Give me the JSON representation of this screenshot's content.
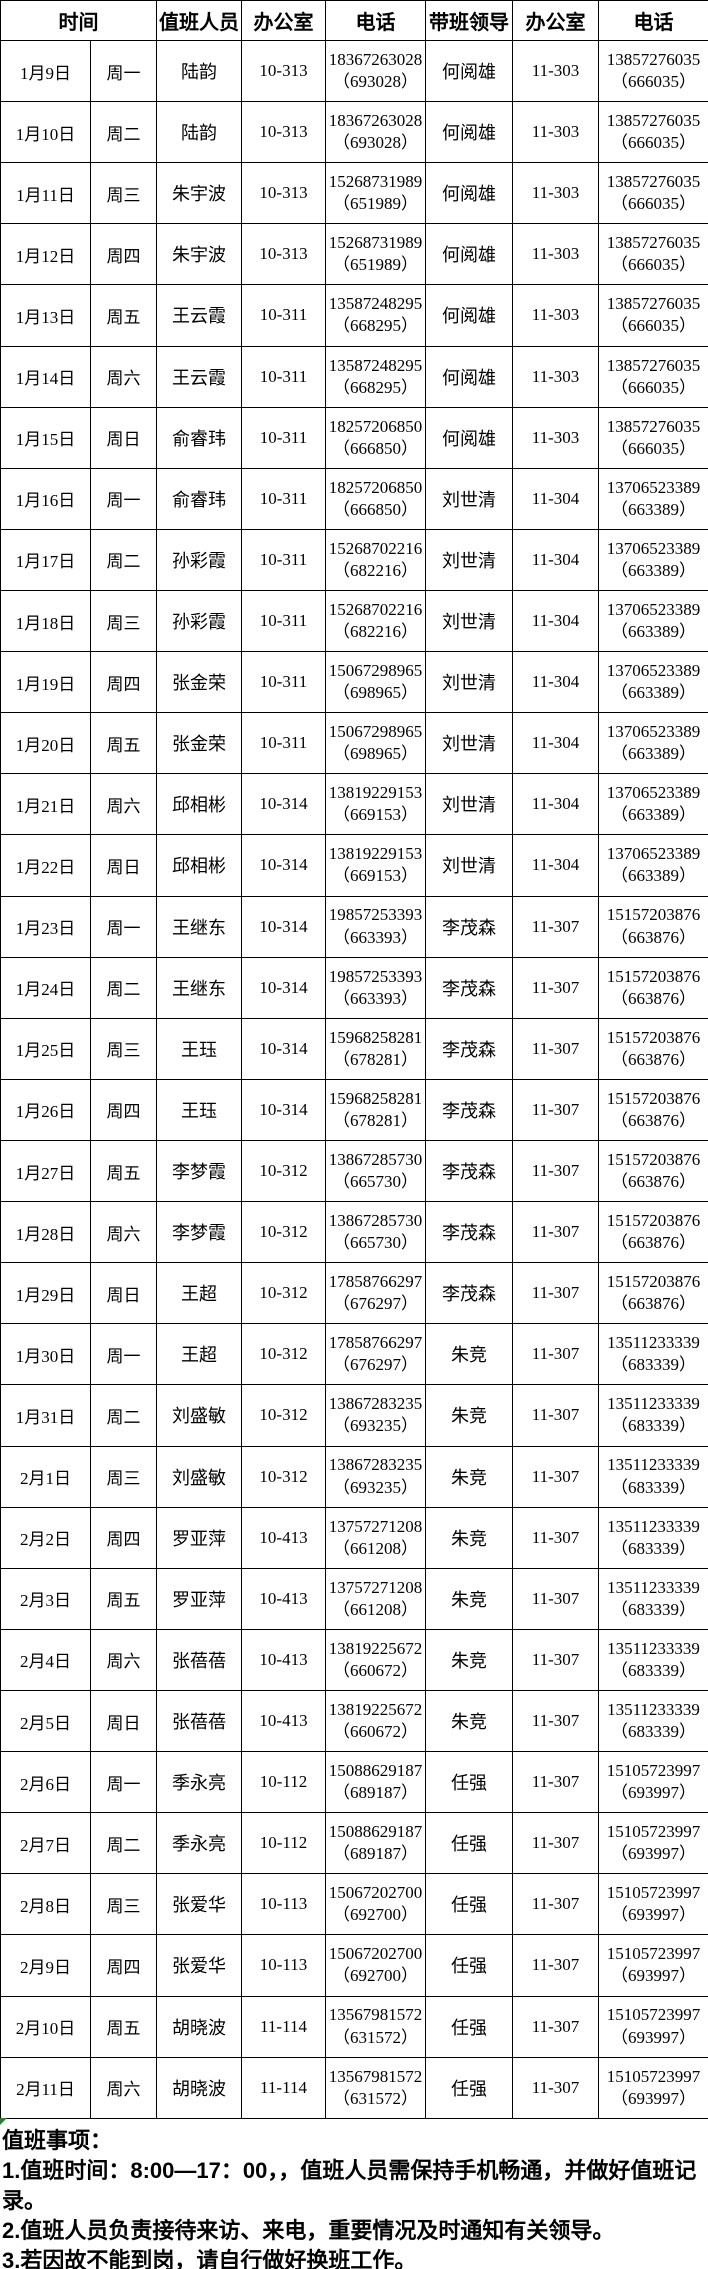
{
  "table": {
    "headers": {
      "time": "时间",
      "person": "值班人员",
      "office": "办公室",
      "phone": "电话",
      "leader": "带班领导",
      "leader_office": "办公室",
      "leader_phone": "电话"
    },
    "rows": [
      {
        "date": "1月9日",
        "weekday": "周一",
        "person": "陆韵",
        "office": "10-313",
        "phone": "18367263028",
        "ext": "（693028）",
        "leader": "何阅雄",
        "leader_office": "11-303",
        "leader_phone": "13857276035",
        "leader_ext": "（666035）"
      },
      {
        "date": "1月10日",
        "weekday": "周二",
        "person": "陆韵",
        "office": "10-313",
        "phone": "18367263028",
        "ext": "（693028）",
        "leader": "何阅雄",
        "leader_office": "11-303",
        "leader_phone": "13857276035",
        "leader_ext": "（666035）"
      },
      {
        "date": "1月11日",
        "weekday": "周三",
        "person": "朱宇波",
        "office": "10-313",
        "phone": "15268731989",
        "ext": "（651989）",
        "leader": "何阅雄",
        "leader_office": "11-303",
        "leader_phone": "13857276035",
        "leader_ext": "（666035）"
      },
      {
        "date": "1月12日",
        "weekday": "周四",
        "person": "朱宇波",
        "office": "10-313",
        "phone": "15268731989",
        "ext": "（651989）",
        "leader": "何阅雄",
        "leader_office": "11-303",
        "leader_phone": "13857276035",
        "leader_ext": "（666035）"
      },
      {
        "date": "1月13日",
        "weekday": "周五",
        "person": "王云霞",
        "office": "10-311",
        "phone": "13587248295",
        "ext": "（668295）",
        "leader": "何阅雄",
        "leader_office": "11-303",
        "leader_phone": "13857276035",
        "leader_ext": "（666035）"
      },
      {
        "date": "1月14日",
        "weekday": "周六",
        "person": "王云霞",
        "office": "10-311",
        "phone": "13587248295",
        "ext": "（668295）",
        "leader": "何阅雄",
        "leader_office": "11-303",
        "leader_phone": "13857276035",
        "leader_ext": "（666035）"
      },
      {
        "date": "1月15日",
        "weekday": "周日",
        "person": "俞睿玮",
        "office": "10-311",
        "phone": "18257206850",
        "ext": "（666850）",
        "leader": "何阅雄",
        "leader_office": "11-303",
        "leader_phone": "13857276035",
        "leader_ext": "（666035）"
      },
      {
        "date": "1月16日",
        "weekday": "周一",
        "person": "俞睿玮",
        "office": "10-311",
        "phone": "18257206850",
        "ext": "（666850）",
        "leader": "刘世清",
        "leader_office": "11-304",
        "leader_phone": "13706523389",
        "leader_ext": "（663389）"
      },
      {
        "date": "1月17日",
        "weekday": "周二",
        "person": "孙彩霞",
        "office": "10-311",
        "phone": "15268702216",
        "ext": "（682216）",
        "leader": "刘世清",
        "leader_office": "11-304",
        "leader_phone": "13706523389",
        "leader_ext": "（663389）"
      },
      {
        "date": "1月18日",
        "weekday": "周三",
        "person": "孙彩霞",
        "office": "10-311",
        "phone": "15268702216",
        "ext": "（682216）",
        "leader": "刘世清",
        "leader_office": "11-304",
        "leader_phone": "13706523389",
        "leader_ext": "（663389）"
      },
      {
        "date": "1月19日",
        "weekday": "周四",
        "person": "张金荣",
        "office": "10-311",
        "phone": "15067298965",
        "ext": "（698965）",
        "leader": "刘世清",
        "leader_office": "11-304",
        "leader_phone": "13706523389",
        "leader_ext": "（663389）"
      },
      {
        "date": "1月20日",
        "weekday": "周五",
        "person": "张金荣",
        "office": "10-311",
        "phone": "15067298965",
        "ext": "（698965）",
        "leader": "刘世清",
        "leader_office": "11-304",
        "leader_phone": "13706523389",
        "leader_ext": "（663389）"
      },
      {
        "date": "1月21日",
        "weekday": "周六",
        "person": "邱相彬",
        "office": "10-314",
        "phone": "13819229153",
        "ext": "（669153）",
        "leader": "刘世清",
        "leader_office": "11-304",
        "leader_phone": "13706523389",
        "leader_ext": "（663389）"
      },
      {
        "date": "1月22日",
        "weekday": "周日",
        "person": "邱相彬",
        "office": "10-314",
        "phone": "13819229153",
        "ext": "（669153）",
        "leader": "刘世清",
        "leader_office": "11-304",
        "leader_phone": "13706523389",
        "leader_ext": "（663389）"
      },
      {
        "date": "1月23日",
        "weekday": "周一",
        "person": "王继东",
        "office": "10-314",
        "phone": "19857253393",
        "ext": "（663393）",
        "leader": "李茂森",
        "leader_office": "11-307",
        "leader_phone": "15157203876",
        "leader_ext": "（663876）"
      },
      {
        "date": "1月24日",
        "weekday": "周二",
        "person": "王继东",
        "office": "10-314",
        "phone": "19857253393",
        "ext": "（663393）",
        "leader": "李茂森",
        "leader_office": "11-307",
        "leader_phone": "15157203876",
        "leader_ext": "（663876）"
      },
      {
        "date": "1月25日",
        "weekday": "周三",
        "person": "王珏",
        "office": "10-314",
        "phone": "15968258281",
        "ext": "（678281）",
        "leader": "李茂森",
        "leader_office": "11-307",
        "leader_phone": "15157203876",
        "leader_ext": "（663876）"
      },
      {
        "date": "1月26日",
        "weekday": "周四",
        "person": "王珏",
        "office": "10-314",
        "phone": "15968258281",
        "ext": "（678281）",
        "leader": "李茂森",
        "leader_office": "11-307",
        "leader_phone": "15157203876",
        "leader_ext": "（663876）"
      },
      {
        "date": "1月27日",
        "weekday": "周五",
        "person": "李梦霞",
        "office": "10-312",
        "phone": "13867285730",
        "ext": "（665730）",
        "leader": "李茂森",
        "leader_office": "11-307",
        "leader_phone": "15157203876",
        "leader_ext": "（663876）"
      },
      {
        "date": "1月28日",
        "weekday": "周六",
        "person": "李梦霞",
        "office": "10-312",
        "phone": "13867285730",
        "ext": "（665730）",
        "leader": "李茂森",
        "leader_office": "11-307",
        "leader_phone": "15157203876",
        "leader_ext": "（663876）"
      },
      {
        "date": "1月29日",
        "weekday": "周日",
        "person": "王超",
        "office": "10-312",
        "phone": "17858766297",
        "ext": "（676297）",
        "leader": "李茂森",
        "leader_office": "11-307",
        "leader_phone": "15157203876",
        "leader_ext": "（663876）"
      },
      {
        "date": "1月30日",
        "weekday": "周一",
        "person": "王超",
        "office": "10-312",
        "phone": "17858766297",
        "ext": "（676297）",
        "leader": "朱竞",
        "leader_office": "11-307",
        "leader_phone": "13511233339",
        "leader_ext": "（683339）"
      },
      {
        "date": "1月31日",
        "weekday": "周二",
        "person": "刘盛敏",
        "office": "10-312",
        "phone": "13867283235",
        "ext": "（693235）",
        "leader": "朱竞",
        "leader_office": "11-307",
        "leader_phone": "13511233339",
        "leader_ext": "（683339）"
      },
      {
        "date": "2月1日",
        "weekday": "周三",
        "person": "刘盛敏",
        "office": "10-312",
        "phone": "13867283235",
        "ext": "（693235）",
        "leader": "朱竞",
        "leader_office": "11-307",
        "leader_phone": "13511233339",
        "leader_ext": "（683339）"
      },
      {
        "date": "2月2日",
        "weekday": "周四",
        "person": "罗亚萍",
        "office": "10-413",
        "phone": "13757271208",
        "ext": "（661208）",
        "leader": "朱竞",
        "leader_office": "11-307",
        "leader_phone": "13511233339",
        "leader_ext": "（683339）"
      },
      {
        "date": "2月3日",
        "weekday": "周五",
        "person": "罗亚萍",
        "office": "10-413",
        "phone": "13757271208",
        "ext": "（661208）",
        "leader": "朱竞",
        "leader_office": "11-307",
        "leader_phone": "13511233339",
        "leader_ext": "（683339）"
      },
      {
        "date": "2月4日",
        "weekday": "周六",
        "person": "张蓓蓓",
        "office": "10-413",
        "phone": "13819225672",
        "ext": "（660672）",
        "leader": "朱竞",
        "leader_office": "11-307",
        "leader_phone": "13511233339",
        "leader_ext": "（683339）"
      },
      {
        "date": "2月5日",
        "weekday": "周日",
        "person": "张蓓蓓",
        "office": "10-413",
        "phone": "13819225672",
        "ext": "（660672）",
        "leader": "朱竞",
        "leader_office": "11-307",
        "leader_phone": "13511233339",
        "leader_ext": "（683339）"
      },
      {
        "date": "2月6日",
        "weekday": "周一",
        "person": "季永亮",
        "office": "10-112",
        "phone": "15088629187",
        "ext": "（689187）",
        "leader": "任强",
        "leader_office": "11-307",
        "leader_phone": "15105723997",
        "leader_ext": "（693997）"
      },
      {
        "date": "2月7日",
        "weekday": "周二",
        "person": "季永亮",
        "office": "10-112",
        "phone": "15088629187",
        "ext": "（689187）",
        "leader": "任强",
        "leader_office": "11-307",
        "leader_phone": "15105723997",
        "leader_ext": "（693997）"
      },
      {
        "date": "2月8日",
        "weekday": "周三",
        "person": "张爱华",
        "office": "10-113",
        "phone": "15067202700",
        "ext": "（692700）",
        "leader": "任强",
        "leader_office": "11-307",
        "leader_phone": "15105723997",
        "leader_ext": "（693997）"
      },
      {
        "date": "2月9日",
        "weekday": "周四",
        "person": "张爱华",
        "office": "10-113",
        "phone": "15067202700",
        "ext": "（692700）",
        "leader": "任强",
        "leader_office": "11-307",
        "leader_phone": "15105723997",
        "leader_ext": "（693997）"
      },
      {
        "date": "2月10日",
        "weekday": "周五",
        "person": "胡晓波",
        "office": "11-114",
        "phone": "13567981572",
        "ext": "（631572）",
        "leader": "任强",
        "leader_office": "11-307",
        "leader_phone": "15105723997",
        "leader_ext": "（693997）"
      },
      {
        "date": "2月11日",
        "weekday": "周六",
        "person": "胡晓波",
        "office": "11-114",
        "phone": "13567981572",
        "ext": "（631572）",
        "leader": "任强",
        "leader_office": "11-307",
        "leader_phone": "15105723997",
        "leader_ext": "（693997）"
      }
    ]
  },
  "notes": {
    "title": "值班事项：",
    "items": [
      "1.值班时间：8:00—17：00，，值班人员需保持手机畅通，并做好值班记录。",
      "2.值班人员负责接待来访、来电，重要情况及时通知有关领导。",
      "3.若因故不能到岗，请自行做好换班工作。"
    ]
  },
  "colors": {
    "text": "#000000",
    "border": "#000000",
    "background": "#ffffff",
    "corner_marker_green": "#2e7d32"
  }
}
